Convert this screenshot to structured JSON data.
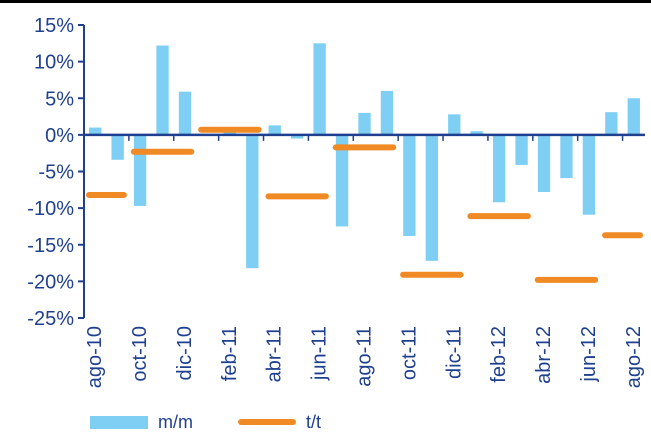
{
  "chart_data": {
    "type": "bar",
    "categories": [
      "ago-10",
      "sep-10",
      "oct-10",
      "nov-10",
      "dic-10",
      "ene-11",
      "feb-11",
      "mar-11",
      "abr-11",
      "may-11",
      "jun-11",
      "jul-11",
      "ago-11",
      "sep-11",
      "oct-11",
      "nov-11",
      "dic-11",
      "ene-12",
      "feb-12",
      "mar-12",
      "abr-12",
      "may-12",
      "jun-12",
      "jul-12",
      "ago-12"
    ],
    "tick_labels": [
      "ago-10",
      "oct-10",
      "dic-10",
      "feb-11",
      "abr-11",
      "jun-11",
      "ago-11",
      "oct-11",
      "dic-11",
      "feb-12",
      "abr-12",
      "jun-12",
      "ago-12"
    ],
    "series": [
      {
        "name": "m/m",
        "kind": "bar",
        "color": "#7ecff3",
        "values": [
          1.0,
          -3.4,
          -9.7,
          12.2,
          5.9,
          null,
          0.8,
          -18.2,
          1.3,
          -0.5,
          12.5,
          -12.5,
          3.0,
          6.0,
          -13.8,
          -17.2,
          2.8,
          0.5,
          -9.2,
          -4.1,
          -7.8,
          -5.9,
          -10.9,
          3.1,
          5.0
        ]
      },
      {
        "name": "t/t",
        "kind": "segment",
        "color": "#f08a24",
        "segments": [
          {
            "from": 0,
            "to": 1,
            "value": -8.2
          },
          {
            "from": 2,
            "to": 4,
            "value": -2.3
          },
          {
            "from": 5,
            "to": 7,
            "value": 0.7
          },
          {
            "from": 8,
            "to": 10,
            "value": -8.4
          },
          {
            "from": 11,
            "to": 13,
            "value": -1.7
          },
          {
            "from": 14,
            "to": 16,
            "value": -19.1
          },
          {
            "from": 17,
            "to": 19,
            "value": -11.1
          },
          {
            "from": 20,
            "to": 22,
            "value": -19.8
          },
          {
            "from": 23,
            "to": 24,
            "value": -13.7
          }
        ]
      }
    ],
    "yticks": [
      15,
      10,
      5,
      0,
      -5,
      -10,
      -15,
      -20,
      -25
    ],
    "ytick_labels": [
      "15%",
      "10%",
      "5%",
      "0%",
      "-5%",
      "-10%",
      "-15%",
      "-20%",
      "-25%"
    ],
    "ylim": [
      -25,
      15
    ],
    "axis_color": "#1f3f8f",
    "legend_position": "bottom-left"
  },
  "legend": {
    "items": [
      {
        "label": "m/m"
      },
      {
        "label": "t/t"
      }
    ]
  }
}
